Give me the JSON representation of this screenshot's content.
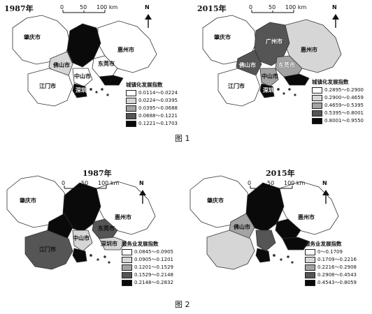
{
  "figure1": {
    "caption": "图 1",
    "left": {
      "year": "1987年",
      "scale": [
        "0",
        "50",
        "100 km"
      ],
      "north": "N",
      "cities": [
        "肇庆市",
        "佛山市",
        "惠州市",
        "东莞市",
        "中山市",
        "江门市",
        "深圳"
      ],
      "legend": {
        "title": "城镇化发展指数",
        "items": [
          "0.0114～0.0224",
          "0.0224～0.0395",
          "0.0395～0.0688",
          "0.0688～0.1221",
          "0.1221～0.1703"
        ]
      }
    },
    "right": {
      "year": "2015年",
      "scale": [
        "0",
        "50",
        "100 km"
      ],
      "north": "N",
      "cities": [
        "肇庆市",
        "广州市",
        "惠州市",
        "佛山市",
        "东莞市",
        "江门市",
        "中山市",
        "深圳"
      ],
      "legend": {
        "title": "城镇化发展指数",
        "items": [
          "0.2895～0.2900",
          "0.2900～0.4659",
          "0.4659～0.5395",
          "0.5395～0.8001",
          "0.8001～0.9550"
        ]
      }
    }
  },
  "figure2": {
    "caption": "图 2",
    "left": {
      "year": "1987年",
      "scale": [
        "0",
        "50",
        "100 km"
      ],
      "north": "N",
      "cities": [
        "肇庆市",
        "惠州市",
        "东莞市",
        "中山市",
        "江门市",
        "深圳市"
      ],
      "legend": {
        "title": "服务业发展指数",
        "items": [
          "0.0845～0.0905",
          "0.0905～0.1201",
          "0.1201～0.1529",
          "0.1529～0.2148",
          "0.2148～0.2832"
        ]
      }
    },
    "right": {
      "year": "2015年",
      "scale": [
        "0",
        "50",
        "100 km"
      ],
      "north": "N",
      "cities": [
        "肇庆市",
        "惠州市",
        "佛山市"
      ],
      "legend": {
        "title": "服务业发展指数",
        "items": [
          "0～0.1709",
          "0.1709～0.2216",
          "0.2216～0.2908",
          "0.2908～0.4543",
          "0.4543～0.8059"
        ]
      }
    }
  },
  "colors": {
    "class1": "#ffffff",
    "class2": "#d6d6d6",
    "class3": "#a3a3a3",
    "class4": "#555555",
    "class5": "#0a0a0a"
  }
}
